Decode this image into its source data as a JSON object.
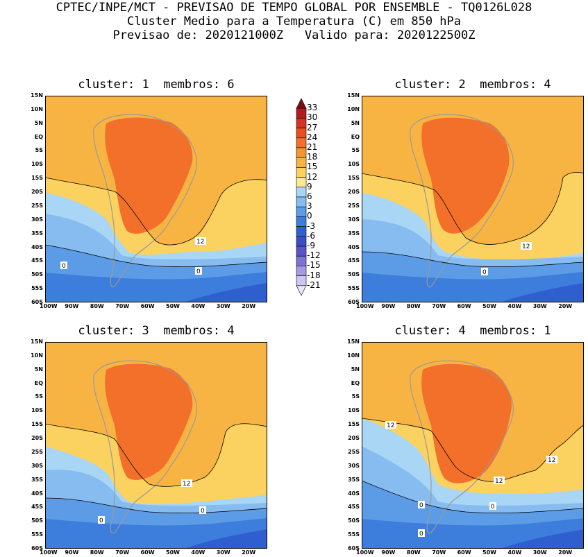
{
  "header": {
    "line1": "CPTEC/INPE/MCT - PREVISAO DE TEMPO GLOBAL POR ENSEMBLE - TQ0126L028",
    "line2": "Cluster Medio para a Temperatura (C) em 850 hPa",
    "line3": "Previsao de: 2020121000Z   Valido para: 2020122500Z"
  },
  "panels": [
    {
      "title": "cluster: 1  membros: 6",
      "contour_labels": [
        "12",
        "0",
        "0"
      ]
    },
    {
      "title": "cluster: 2  membros: 4",
      "contour_labels": [
        "12",
        "0"
      ]
    },
    {
      "title": "cluster: 3  membros: 4",
      "contour_labels": [
        "12",
        "0",
        "0"
      ]
    },
    {
      "title": "cluster: 4  membros: 1",
      "contour_labels": [
        "12",
        "12",
        "12",
        "0",
        "0",
        "0"
      ]
    }
  ],
  "lat_labels": [
    "15N",
    "10N",
    "5N",
    "EQ",
    "5S",
    "10S",
    "15S",
    "20S",
    "25S",
    "30S",
    "35S",
    "40S",
    "45S",
    "50S",
    "55S",
    "60S"
  ],
  "lon_labels": [
    "100W",
    "90W",
    "80W",
    "70W",
    "60W",
    "50W",
    "40W",
    "30W",
    "20W"
  ],
  "colorbar": {
    "labels": [
      "33",
      "30",
      "27",
      "24",
      "21",
      "18",
      "15",
      "12",
      "9",
      "6",
      "3",
      "0",
      "-3",
      "-6",
      "-9",
      "-12",
      "-15",
      "-18",
      "-21"
    ],
    "colors": [
      "#7a0f12",
      "#b01d1f",
      "#d63324",
      "#ec4d22",
      "#f3702a",
      "#f4962e",
      "#f8b443",
      "#fbd25f",
      "#fde893",
      "#a9d6f5",
      "#86bcf0",
      "#5c9be6",
      "#3d7ddc",
      "#2f5fcf",
      "#3a4ec2",
      "#5a54c8",
      "#7d72d6",
      "#a69be3",
      "#cfc6f0",
      "#ece8fa"
    ]
  },
  "chart_data": {
    "type": "map",
    "variable": "Temperatura (C) em 850 hPa",
    "domain_lon": [
      -100,
      -12
    ],
    "domain_lat": [
      -60,
      15
    ],
    "contour_interval": 3,
    "labeled_isotherms": [
      12,
      0
    ]
  }
}
